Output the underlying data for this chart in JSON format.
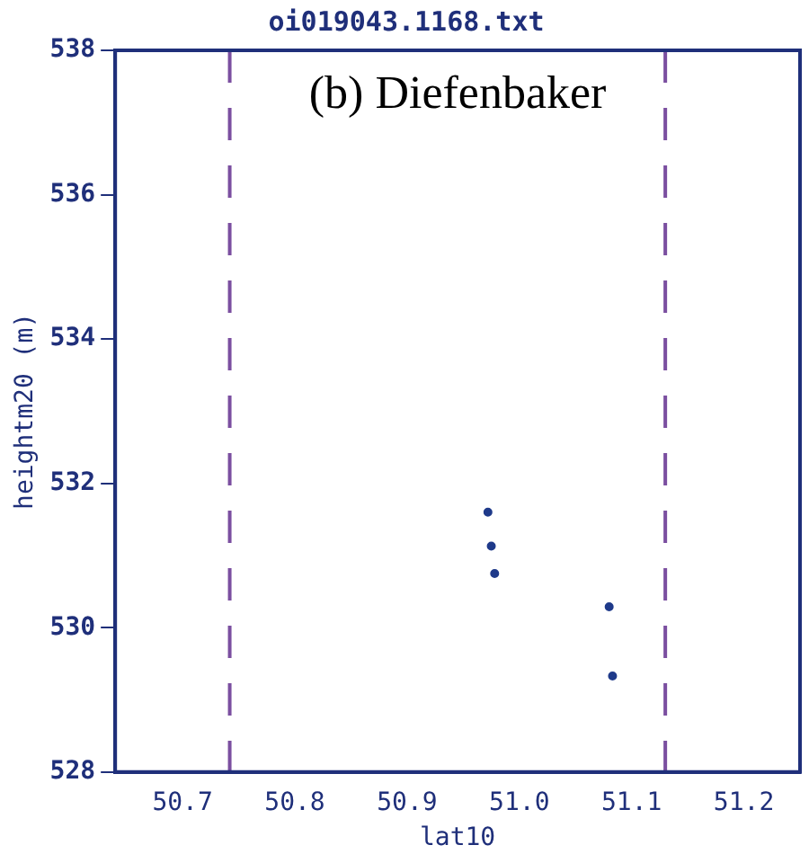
{
  "chart_data": {
    "type": "scatter",
    "title": "oi019043.1168.txt",
    "xlabel": "lat10",
    "ylabel": "heightm20 (m)",
    "annotations": [
      "(b) Diefenbaker"
    ],
    "x": [
      50.972,
      50.975,
      50.978,
      51.08,
      51.083
    ],
    "series": [
      {
        "color": "#1f3a8a",
        "values": [
          531.6,
          531.13,
          530.75,
          530.29,
          529.33
        ]
      }
    ],
    "xlim": [
      50.64,
      51.25
    ],
    "xticks": [
      {
        "value": 50.7,
        "label": "50.7"
      },
      {
        "value": 50.8,
        "label": "50.8"
      },
      {
        "value": 50.9,
        "label": "50.9"
      },
      {
        "value": 51.0,
        "label": "51.0"
      },
      {
        "value": 51.1,
        "label": "51.1"
      },
      {
        "value": 51.2,
        "label": "51.2"
      }
    ],
    "ylim": [
      528,
      538
    ],
    "yticks": [
      528,
      530,
      532,
      534,
      536,
      538
    ],
    "ref_lines": [
      {
        "axis": "x",
        "value": 50.742,
        "color": "#7b4fa0",
        "line_style": "dashed"
      },
      {
        "axis": "x",
        "value": 51.13,
        "color": "#7b4fa0",
        "line_style": "dashed"
      }
    ],
    "marker": "circle",
    "grid": false,
    "legend": false
  }
}
